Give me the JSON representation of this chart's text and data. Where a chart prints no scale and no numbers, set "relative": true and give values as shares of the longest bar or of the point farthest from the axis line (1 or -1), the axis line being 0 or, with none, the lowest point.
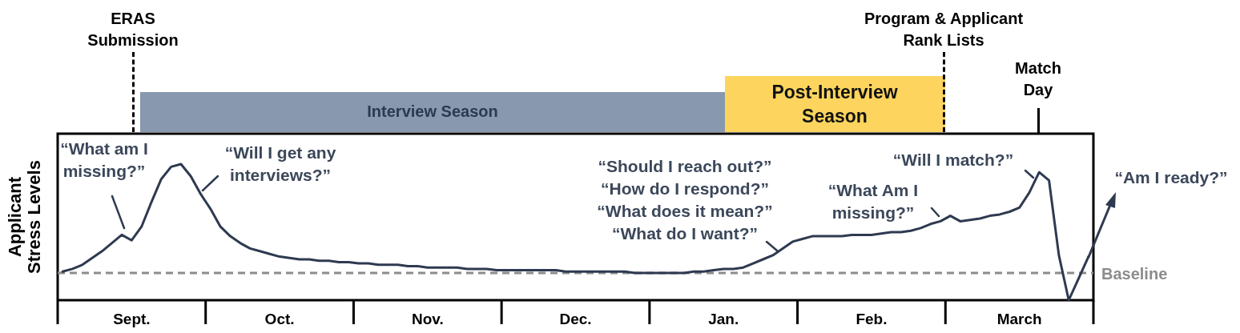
{
  "chart_data": {
    "type": "line",
    "relative": true,
    "ylabel": "Applicant Stress Levels",
    "categories": [
      null,
      null,
      null,
      null,
      null,
      null,
      null,
      "Sept.",
      null,
      null,
      null,
      null,
      null,
      null,
      null,
      null,
      null,
      null,
      null,
      null,
      null,
      null,
      "Oct.",
      null,
      null,
      null,
      null,
      null,
      null,
      null,
      null,
      null,
      null,
      null,
      null,
      null,
      null,
      "Nov.",
      null,
      null,
      null,
      null,
      null,
      null,
      null,
      null,
      null,
      null,
      null,
      null,
      null,
      null,
      "Dec.",
      null,
      null,
      null,
      null,
      null,
      null,
      null,
      null,
      null,
      null,
      null,
      null,
      null,
      null,
      "Jan.",
      null,
      null,
      null,
      null,
      null,
      null,
      null,
      null,
      null,
      null,
      null,
      null,
      null,
      null,
      "Feb.",
      null,
      null,
      null,
      null,
      null,
      null,
      null,
      null,
      null,
      null,
      null,
      null,
      null,
      null,
      "March",
      null,
      null,
      null,
      null,
      null,
      null,
      null
    ],
    "series": [
      {
        "color": "#2e3a50",
        "values": [
          0.21,
          0.23,
          0.26,
          0.31,
          0.36,
          0.42,
          0.48,
          0.44,
          0.54,
          0.72,
          0.89,
          0.98,
          1.0,
          0.91,
          0.78,
          0.67,
          0.54,
          0.47,
          0.42,
          0.38,
          0.36,
          0.34,
          0.32,
          0.31,
          0.3,
          0.3,
          0.29,
          0.29,
          0.28,
          0.28,
          0.27,
          0.27,
          0.26,
          0.26,
          0.26,
          0.25,
          0.25,
          0.24,
          0.24,
          0.24,
          0.24,
          0.23,
          0.23,
          0.23,
          0.22,
          0.22,
          0.22,
          0.22,
          0.22,
          0.22,
          0.22,
          0.21,
          0.21,
          0.21,
          0.21,
          0.21,
          0.21,
          0.21,
          0.2,
          0.2,
          0.2,
          0.2,
          0.2,
          0.2,
          0.21,
          0.21,
          0.22,
          0.23,
          0.23,
          0.24,
          0.27,
          0.3,
          0.33,
          0.38,
          0.43,
          0.45,
          0.47,
          0.47,
          0.47,
          0.47,
          0.48,
          0.48,
          0.48,
          0.49,
          0.5,
          0.5,
          0.51,
          0.53,
          0.56,
          0.58,
          0.62,
          0.58,
          0.59,
          0.6,
          0.62,
          0.63,
          0.65,
          0.68,
          0.79,
          0.94,
          0.88,
          0.33,
          0,
          0.16,
          0.32
        ]
      }
    ],
    "ref_lines": [
      {
        "axis": "y",
        "value": 0.2,
        "label": "Baseline",
        "color": "#8c8c8c",
        "line_style": "dashed"
      }
    ],
    "annotations": [
      "“What am I missing?”",
      "“Will I get any interviews?”",
      "“Should I reach out?” “How do I respond?” “What does it mean?” “What do I want?”",
      "“What Am I missing?”",
      "“Will I match?”",
      "“Am I ready?”",
      "ERAS Submission",
      "Program & Applicant Rank Lists",
      "Match Day",
      "Interview Season",
      "Post-Interview Season"
    ],
    "marker": "none",
    "line_style": "solid"
  }
}
